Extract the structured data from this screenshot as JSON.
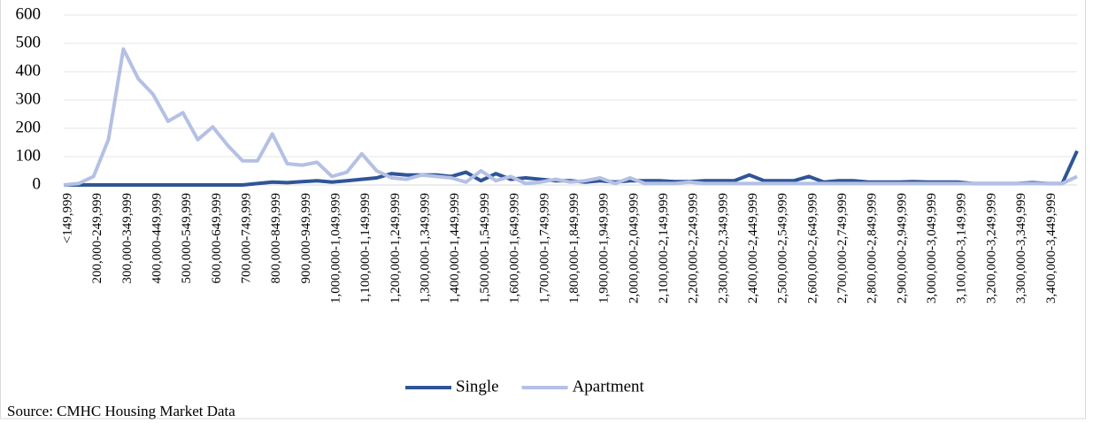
{
  "chart_data": {
    "type": "line",
    "categories": [
      "<149,999",
      null,
      "200,000-249,999",
      null,
      "300,000-349,999",
      null,
      "400,000-449,999",
      null,
      "500,000-549,999",
      null,
      "600,000-649,999",
      null,
      "700,000-749,999",
      null,
      "800,000-849,999",
      null,
      "900,000-949,999",
      null,
      "1,000,000-1,049,999",
      null,
      "1,100,000-1,149,999",
      null,
      "1,200,000-1,249,999",
      null,
      "1,300,000-1,349,999",
      null,
      "1,400,000-1,449,999",
      null,
      "1,500,000-1,549,999",
      null,
      "1,600,000-1,649,999",
      null,
      "1,700,000-1,749,999",
      null,
      "1,800,000-1,849,999",
      null,
      "1,900,000-1,949,999",
      null,
      "2,000,000-2,049,999",
      null,
      "2,100,000-2,149,999",
      null,
      "2,200,000-2,249,999",
      null,
      "2,300,000-2,349,999",
      null,
      "2,400,000-2,449,999",
      null,
      "2,500,000-2,549,999",
      null,
      "2,600,000-2,649,999",
      null,
      "2,700,000-2,749,999",
      null,
      "2,800,000-2,849,999",
      null,
      "2,900,000-2,949,999",
      null,
      "3,000,000-3,049,999",
      null,
      "3,100,000-3,149,999",
      null,
      "3,200,000-3,249,999",
      null,
      "3,300,000-3,349,999",
      null,
      "3,400,000-3,449,999",
      null,
      null
    ],
    "series": [
      {
        "name": "Single",
        "color": "#2f5597",
        "values": [
          0,
          0,
          0,
          0,
          0,
          0,
          0,
          0,
          0,
          0,
          0,
          0,
          0,
          5,
          10,
          8,
          12,
          15,
          10,
          15,
          20,
          25,
          40,
          35,
          35,
          35,
          30,
          45,
          15,
          40,
          20,
          25,
          20,
          15,
          15,
          10,
          15,
          10,
          15,
          15,
          15,
          12,
          12,
          15,
          15,
          15,
          35,
          15,
          15,
          15,
          30,
          10,
          15,
          15,
          10,
          10,
          10,
          12,
          10,
          10,
          10,
          5,
          5,
          5,
          5,
          8,
          5,
          5,
          120
        ]
      },
      {
        "name": "Apartment",
        "color": "#b4c0e4",
        "values": [
          0,
          5,
          30,
          160,
          480,
          375,
          320,
          225,
          255,
          160,
          205,
          140,
          85,
          85,
          180,
          75,
          70,
          80,
          30,
          45,
          110,
          50,
          25,
          20,
          35,
          30,
          25,
          10,
          50,
          15,
          30,
          5,
          10,
          20,
          10,
          15,
          25,
          5,
          25,
          5,
          5,
          5,
          10,
          5,
          5,
          5,
          5,
          5,
          5,
          5,
          5,
          5,
          5,
          5,
          5,
          5,
          5,
          5,
          5,
          5,
          5,
          5,
          5,
          5,
          5,
          5,
          5,
          5,
          30
        ]
      }
    ],
    "ylim": [
      0,
      600
    ],
    "yticks": [
      0,
      100,
      200,
      300,
      400,
      500,
      600
    ],
    "grid": true,
    "legend": "bottom",
    "source": "Source: CMHC Housing Market Data"
  }
}
